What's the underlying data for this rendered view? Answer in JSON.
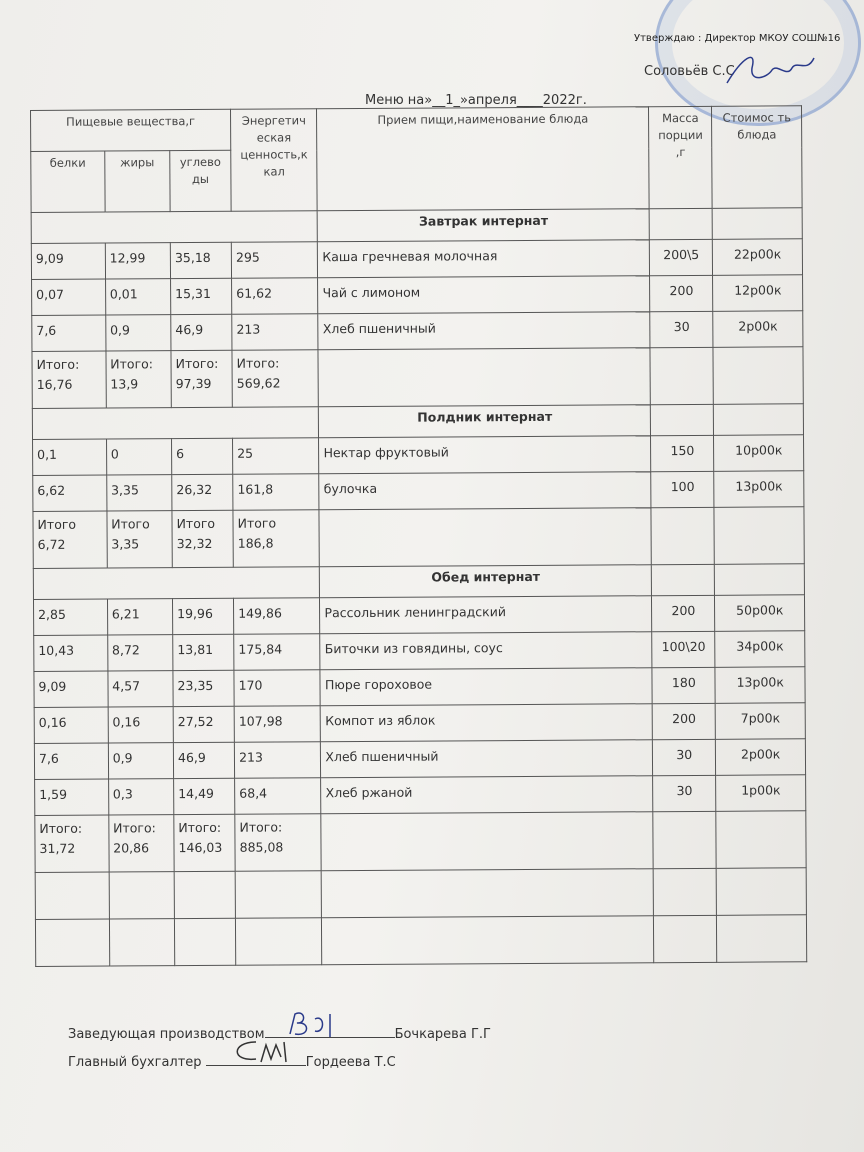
{
  "approval": {
    "line": "Утверждаю : Директор  МКОУ СОШ№16",
    "name": "Соловьёв С.С"
  },
  "title": "Меню на»__1_»апреля____2022г.",
  "header": {
    "nutrients": "Пищевые вещества,г",
    "protein": "белки",
    "fat": "жиры",
    "carbs": "углево ды",
    "energy": "Энергетич еская ценность,к кал",
    "dish": "Прием пищи,наименование блюда",
    "mass": "Масса порции ,г",
    "price": "Стоимос ть блюда"
  },
  "sections": [
    {
      "name": "Завтрак интернат",
      "rows": [
        [
          "9,09",
          "12,99",
          "35,18",
          "295",
          "Каша гречневая  молочная",
          "200\\5",
          "22р00к"
        ],
        [
          "0,07",
          "0,01",
          "15,31",
          "61,62",
          "Чай с лимоном",
          "200",
          "12р00к"
        ],
        [
          "7,6",
          "0,9",
          "46,9",
          "213",
          "Хлеб пшеничный",
          "30",
          "2р00к"
        ]
      ],
      "total": [
        "Итого: 16,76",
        "Итого: 13,9",
        "Итого: 97,39",
        "Итого: 569,62"
      ]
    },
    {
      "name": "Полдник интернат",
      "rows": [
        [
          "0,1",
          "0",
          "6",
          "25",
          "Нектар фруктовый",
          "150",
          "10р00к"
        ],
        [
          "6,62",
          "3,35",
          "26,32",
          "161,8",
          "булочка",
          "100",
          "13р00к"
        ]
      ],
      "total": [
        "Итого 6,72",
        "Итого 3,35",
        "Итого 32,32",
        "Итого 186,8"
      ]
    },
    {
      "name": "Обед интернат",
      "rows": [
        [
          "2,85",
          "6,21",
          "19,96",
          "149,86",
          "Рассольник ленинградский",
          "200",
          "50р00к"
        ],
        [
          "10,43",
          "8,72",
          "13,81",
          "175,84",
          "Биточки из говядины, соус",
          "100\\20",
          "34р00к"
        ],
        [
          "9,09",
          "4,57",
          "23,35",
          "170",
          "Пюре гороховое",
          "180",
          "13р00к"
        ],
        [
          "0,16",
          "0,16",
          "27,52",
          "107,98",
          "Компот из яблок",
          "200",
          "7р00к"
        ],
        [
          "7,6",
          "0,9",
          "46,9",
          "213",
          "Хлеб пшеничный",
          "30",
          "2р00к"
        ],
        [
          "1,59",
          "0,3",
          "14,49",
          "68,4",
          "Хлеб ржаной",
          "30",
          "1р00к"
        ]
      ],
      "total": [
        "Итого: 31,72",
        "Итого: 20,86",
        "Итого: 146,03",
        "Итого: 885,08"
      ]
    }
  ],
  "footer": {
    "production_label": "Заведующая производством",
    "production_name": "Бочкарева Г.Г",
    "accountant_label": "Главный бухгалтер",
    "accountant_name": "Гордеева Т.С"
  }
}
